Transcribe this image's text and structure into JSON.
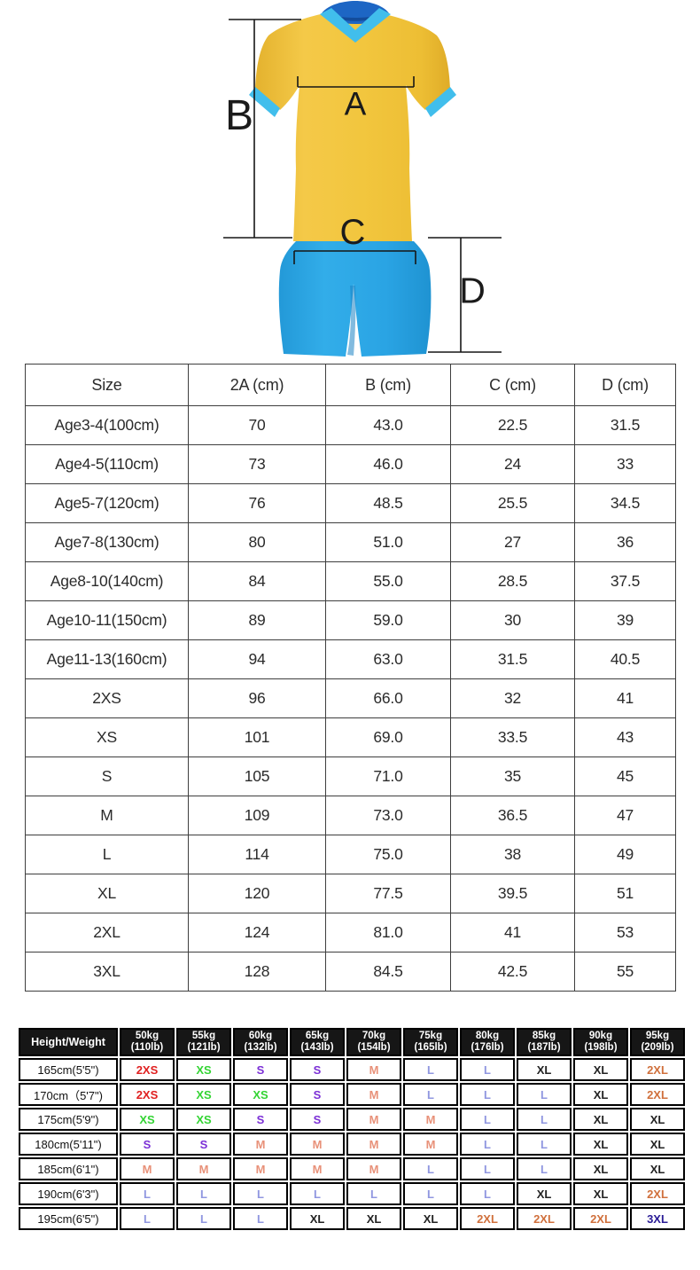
{
  "figure": {
    "labels": {
      "a": "A",
      "b": "B",
      "c": "C",
      "d": "D"
    },
    "colors": {
      "jersey_yellow": "#F2C63E",
      "trim_light_blue": "#41BEEC",
      "collar_dark_blue": "#1D66C4",
      "shorts_blue": "#2AA4E4",
      "line_black": "#161616"
    }
  },
  "size_table": {
    "headers": [
      "Size",
      "2A (cm)",
      "B (cm)",
      "C (cm)",
      "D (cm)"
    ],
    "rows": [
      [
        "Age3-4(100cm)",
        "70",
        "43.0",
        "22.5",
        "31.5"
      ],
      [
        "Age4-5(110cm)",
        "73",
        "46.0",
        "24",
        "33"
      ],
      [
        "Age5-7(120cm)",
        "76",
        "48.5",
        "25.5",
        "34.5"
      ],
      [
        "Age7-8(130cm)",
        "80",
        "51.0",
        "27",
        "36"
      ],
      [
        "Age8-10(140cm)",
        "84",
        "55.0",
        "28.5",
        "37.5"
      ],
      [
        "Age10-11(150cm)",
        "89",
        "59.0",
        "30",
        "39"
      ],
      [
        "Age11-13(160cm)",
        "94",
        "63.0",
        "31.5",
        "40.5"
      ],
      [
        "2XS",
        "96",
        "66.0",
        "32",
        "41"
      ],
      [
        "XS",
        "101",
        "69.0",
        "33.5",
        "43"
      ],
      [
        "S",
        "105",
        "71.0",
        "35",
        "45"
      ],
      [
        "M",
        "109",
        "73.0",
        "36.5",
        "47"
      ],
      [
        "L",
        "114",
        "75.0",
        "38",
        "49"
      ],
      [
        "XL",
        "120",
        "77.5",
        "39.5",
        "51"
      ],
      [
        "2XL",
        "124",
        "81.0",
        "41",
        "53"
      ],
      [
        "3XL",
        "128",
        "84.5",
        "42.5",
        "55"
      ]
    ]
  },
  "fit_table": {
    "corner_header": "Height/Weight",
    "weight_headers": [
      [
        "50kg",
        "(110lb)"
      ],
      [
        "55kg",
        "(121lb)"
      ],
      [
        "60kg",
        "(132lb)"
      ],
      [
        "65kg",
        "(143lb)"
      ],
      [
        "70kg",
        "(154lb)"
      ],
      [
        "75kg",
        "(165lb)"
      ],
      [
        "80kg",
        "(176lb)"
      ],
      [
        "85kg",
        "(187lb)"
      ],
      [
        "90kg",
        "(198lb)"
      ],
      [
        "95kg",
        "(209lb)"
      ]
    ],
    "rows": [
      {
        "height": "165cm(5'5\")",
        "sizes": [
          "2XS",
          "XS",
          "S",
          "S",
          "M",
          "L",
          "L",
          "XL",
          "XL",
          "2XL"
        ]
      },
      {
        "height": "170cm（5'7\")",
        "sizes": [
          "2XS",
          "XS",
          "XS",
          "S",
          "M",
          "L",
          "L",
          "L",
          "XL",
          "2XL"
        ]
      },
      {
        "height": "175cm(5'9\")",
        "sizes": [
          "XS",
          "XS",
          "S",
          "S",
          "M",
          "M",
          "L",
          "L",
          "XL",
          "XL"
        ]
      },
      {
        "height": "180cm(5'11\")",
        "sizes": [
          "S",
          "S",
          "M",
          "M",
          "M",
          "M",
          "L",
          "L",
          "XL",
          "XL"
        ]
      },
      {
        "height": "185cm(6'1\")",
        "sizes": [
          "M",
          "M",
          "M",
          "M",
          "M",
          "L",
          "L",
          "L",
          "XL",
          "XL"
        ]
      },
      {
        "height": "190cm(6'3\")",
        "sizes": [
          "L",
          "L",
          "L",
          "L",
          "L",
          "L",
          "L",
          "XL",
          "XL",
          "2XL"
        ]
      },
      {
        "height": "195cm(6'5\")",
        "sizes": [
          "L",
          "L",
          "L",
          "XL",
          "XL",
          "XL",
          "2XL",
          "2XL",
          "2XL",
          "3XL"
        ]
      }
    ],
    "size_colors": {
      "2XS": "#E02020",
      "XS": "#33D433",
      "S": "#7B2FD6",
      "M": "#E89179",
      "L": "#9097E0",
      "XL": "#222222",
      "2XL": "#D0703C",
      "3XL": "#2A1C96"
    }
  }
}
